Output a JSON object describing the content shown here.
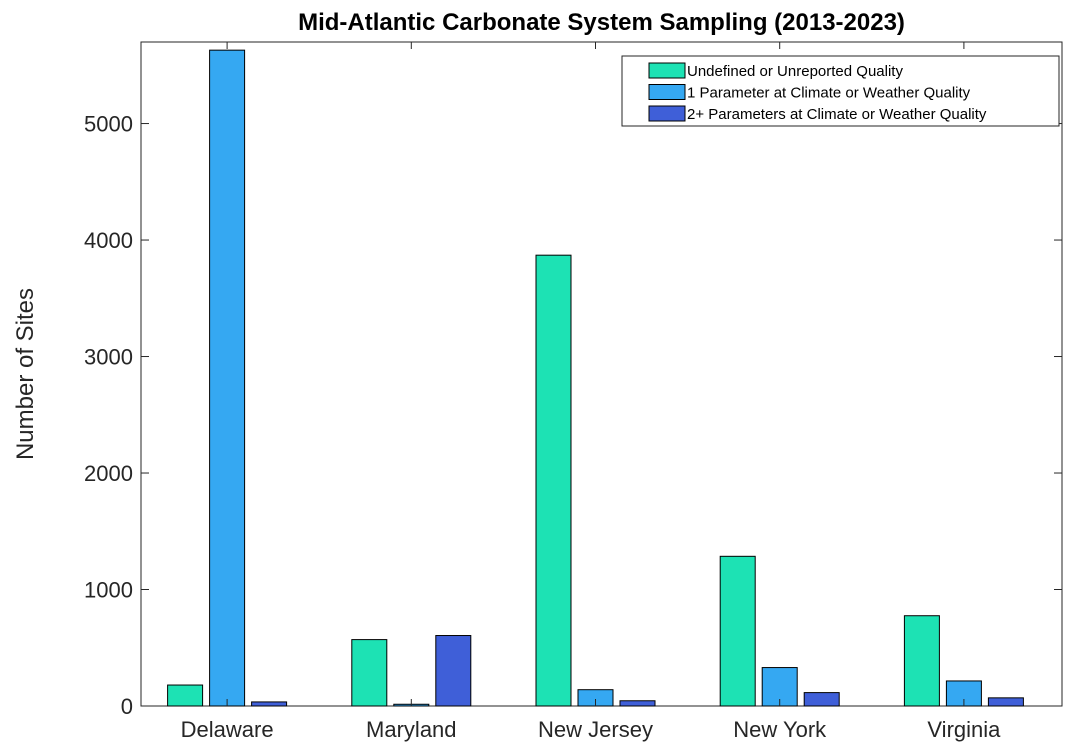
{
  "chart_data": {
    "type": "bar",
    "title": "Mid-Atlantic Carbonate System Sampling (2013-2023)",
    "xlabel": "",
    "ylabel": "Number of Sites",
    "categories": [
      "Delaware",
      "Maryland",
      "New Jersey",
      "New York",
      "Virginia"
    ],
    "series": [
      {
        "name": "Undefined or Unreported Quality",
        "color": "#1de2b4",
        "values": [
          180,
          570,
          3870,
          1285,
          775
        ]
      },
      {
        "name": "1 Parameter at Climate or Weather Quality",
        "color": "#35a8f2",
        "values": [
          5630,
          15,
          140,
          330,
          215
        ]
      },
      {
        "name": "2+ Parameters at Climate or Weather Quality",
        "color": "#3f5fd8",
        "values": [
          35,
          605,
          45,
          115,
          70
        ]
      }
    ],
    "ylim": [
      0,
      5700
    ],
    "yticks": [
      0,
      1000,
      2000,
      3000,
      4000,
      5000
    ],
    "grid": false,
    "legend_position": "top-right"
  }
}
